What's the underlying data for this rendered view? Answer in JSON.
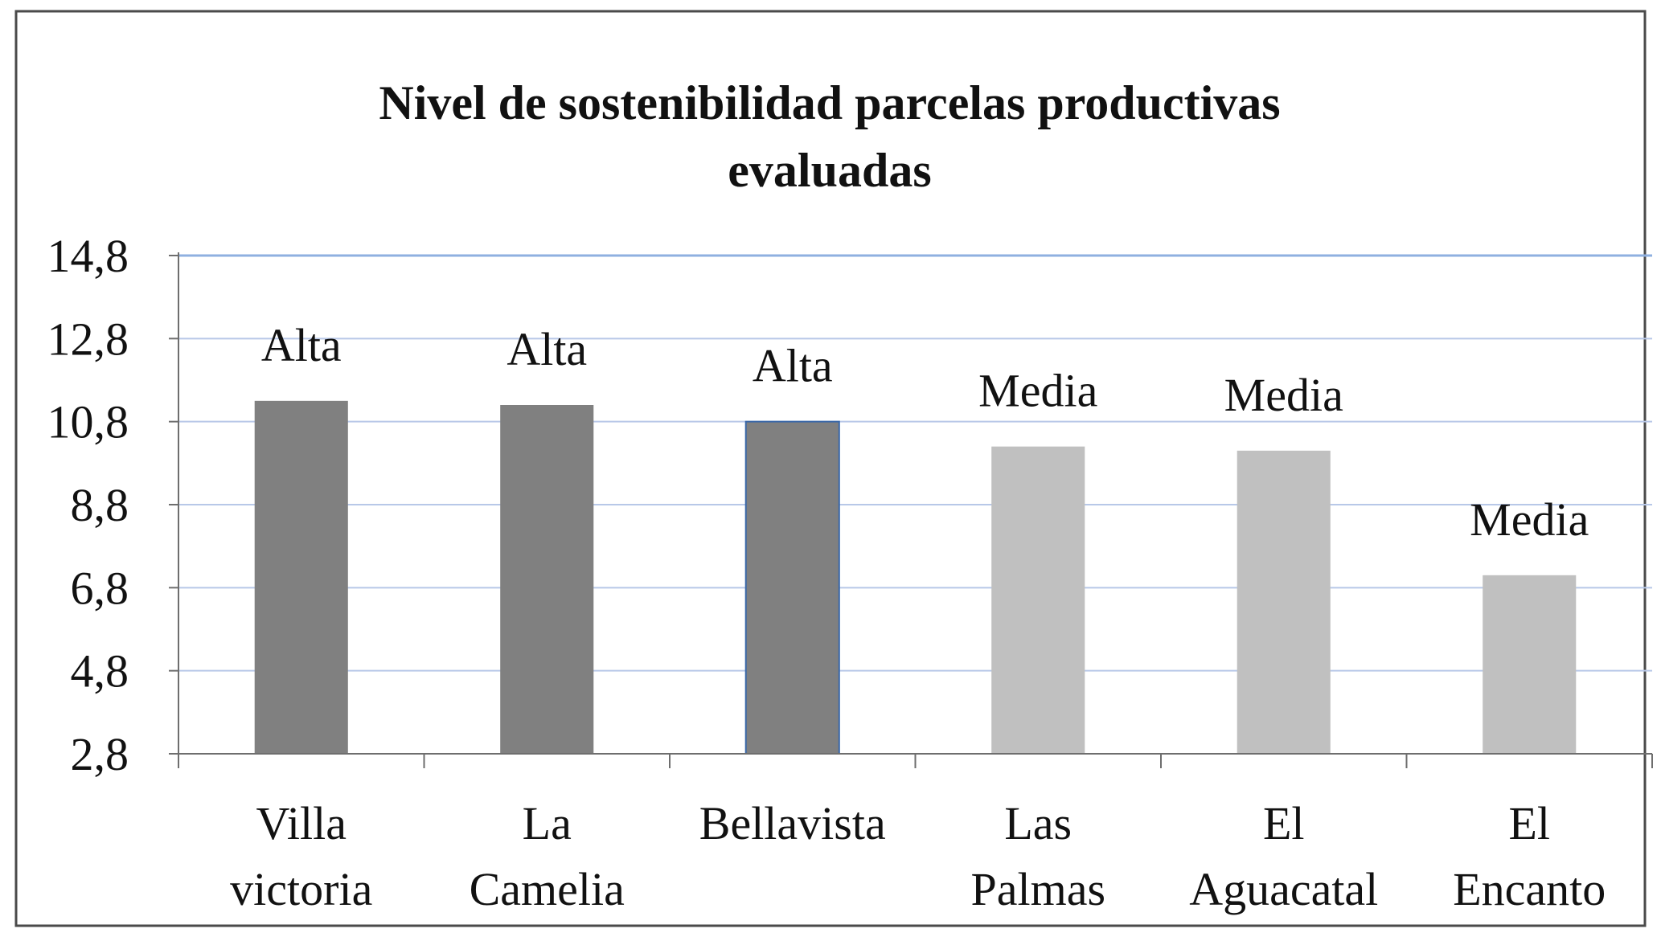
{
  "chart_data": {
    "type": "bar",
    "title_lines": [
      "Nivel de sostenibilidad  parcelas productivas",
      "evaluadas"
    ],
    "xlabel": "",
    "ylabel": "",
    "ylim": [
      2.8,
      14.8
    ],
    "y_ticks": [
      "14,8",
      "12,8",
      "10,8",
      "8,8",
      "6,8",
      "4,8",
      "2,8"
    ],
    "y_tick_values": [
      14.8,
      12.8,
      10.8,
      8.8,
      6.8,
      4.8,
      2.8
    ],
    "grid": true,
    "legend": "none",
    "categories": [
      [
        "Villa",
        "victoria"
      ],
      [
        "La",
        "Camelia"
      ],
      [
        "Bellavista"
      ],
      [
        "Las",
        "Palmas"
      ],
      [
        "El",
        "Aguacatal"
      ],
      [
        "El",
        "Encanto"
      ]
    ],
    "values": [
      11.3,
      11.2,
      10.8,
      10.2,
      10.1,
      7.1
    ],
    "labels": [
      "Alta",
      "Alta",
      "Alta",
      "Media",
      "Media",
      "Media"
    ],
    "colors": {
      "Alta": "#808080",
      "Media": "#c0c0c0",
      "grid": "#b8c8e8",
      "top_grid": "#8fb0e0",
      "axis": "#6e6e6e",
      "frame": "#4a4a4a"
    }
  }
}
